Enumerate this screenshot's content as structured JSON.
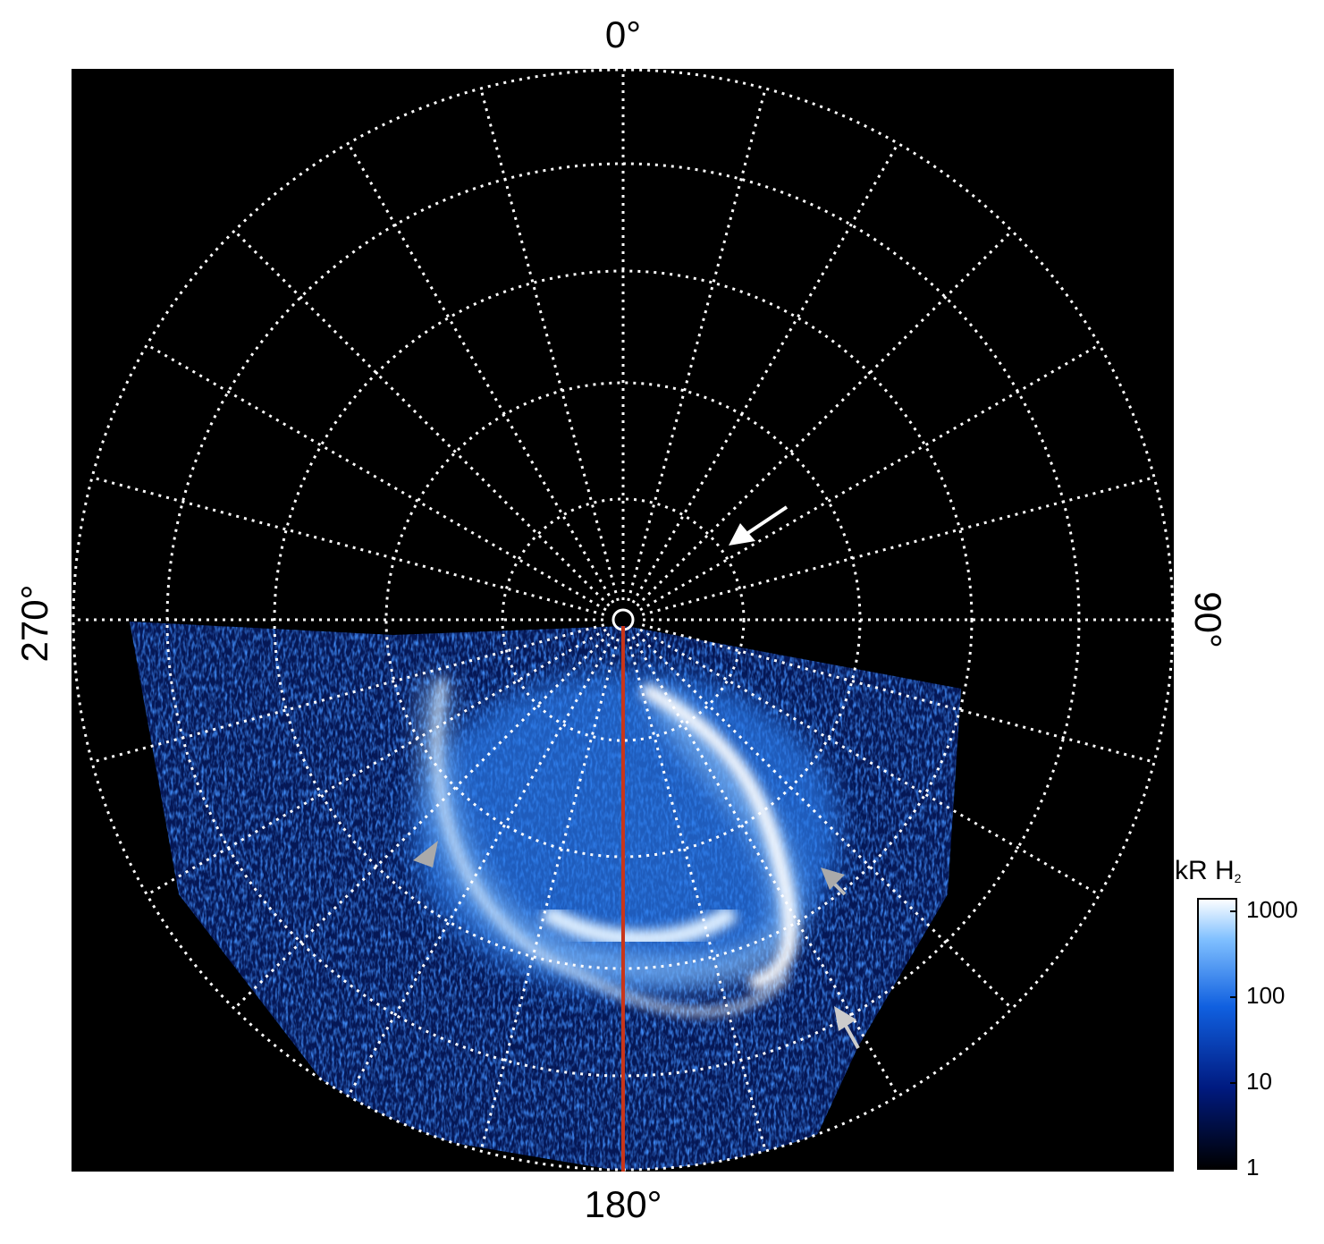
{
  "angle_labels": {
    "top": "0°",
    "right": "90°",
    "bottom": "180°",
    "left": "270°"
  },
  "colorbar": {
    "label": "kR H",
    "label_subscript": "2",
    "scale": "log",
    "lim": [
      1,
      1400
    ],
    "ticks": [
      1,
      10,
      100,
      1000
    ]
  }
}
